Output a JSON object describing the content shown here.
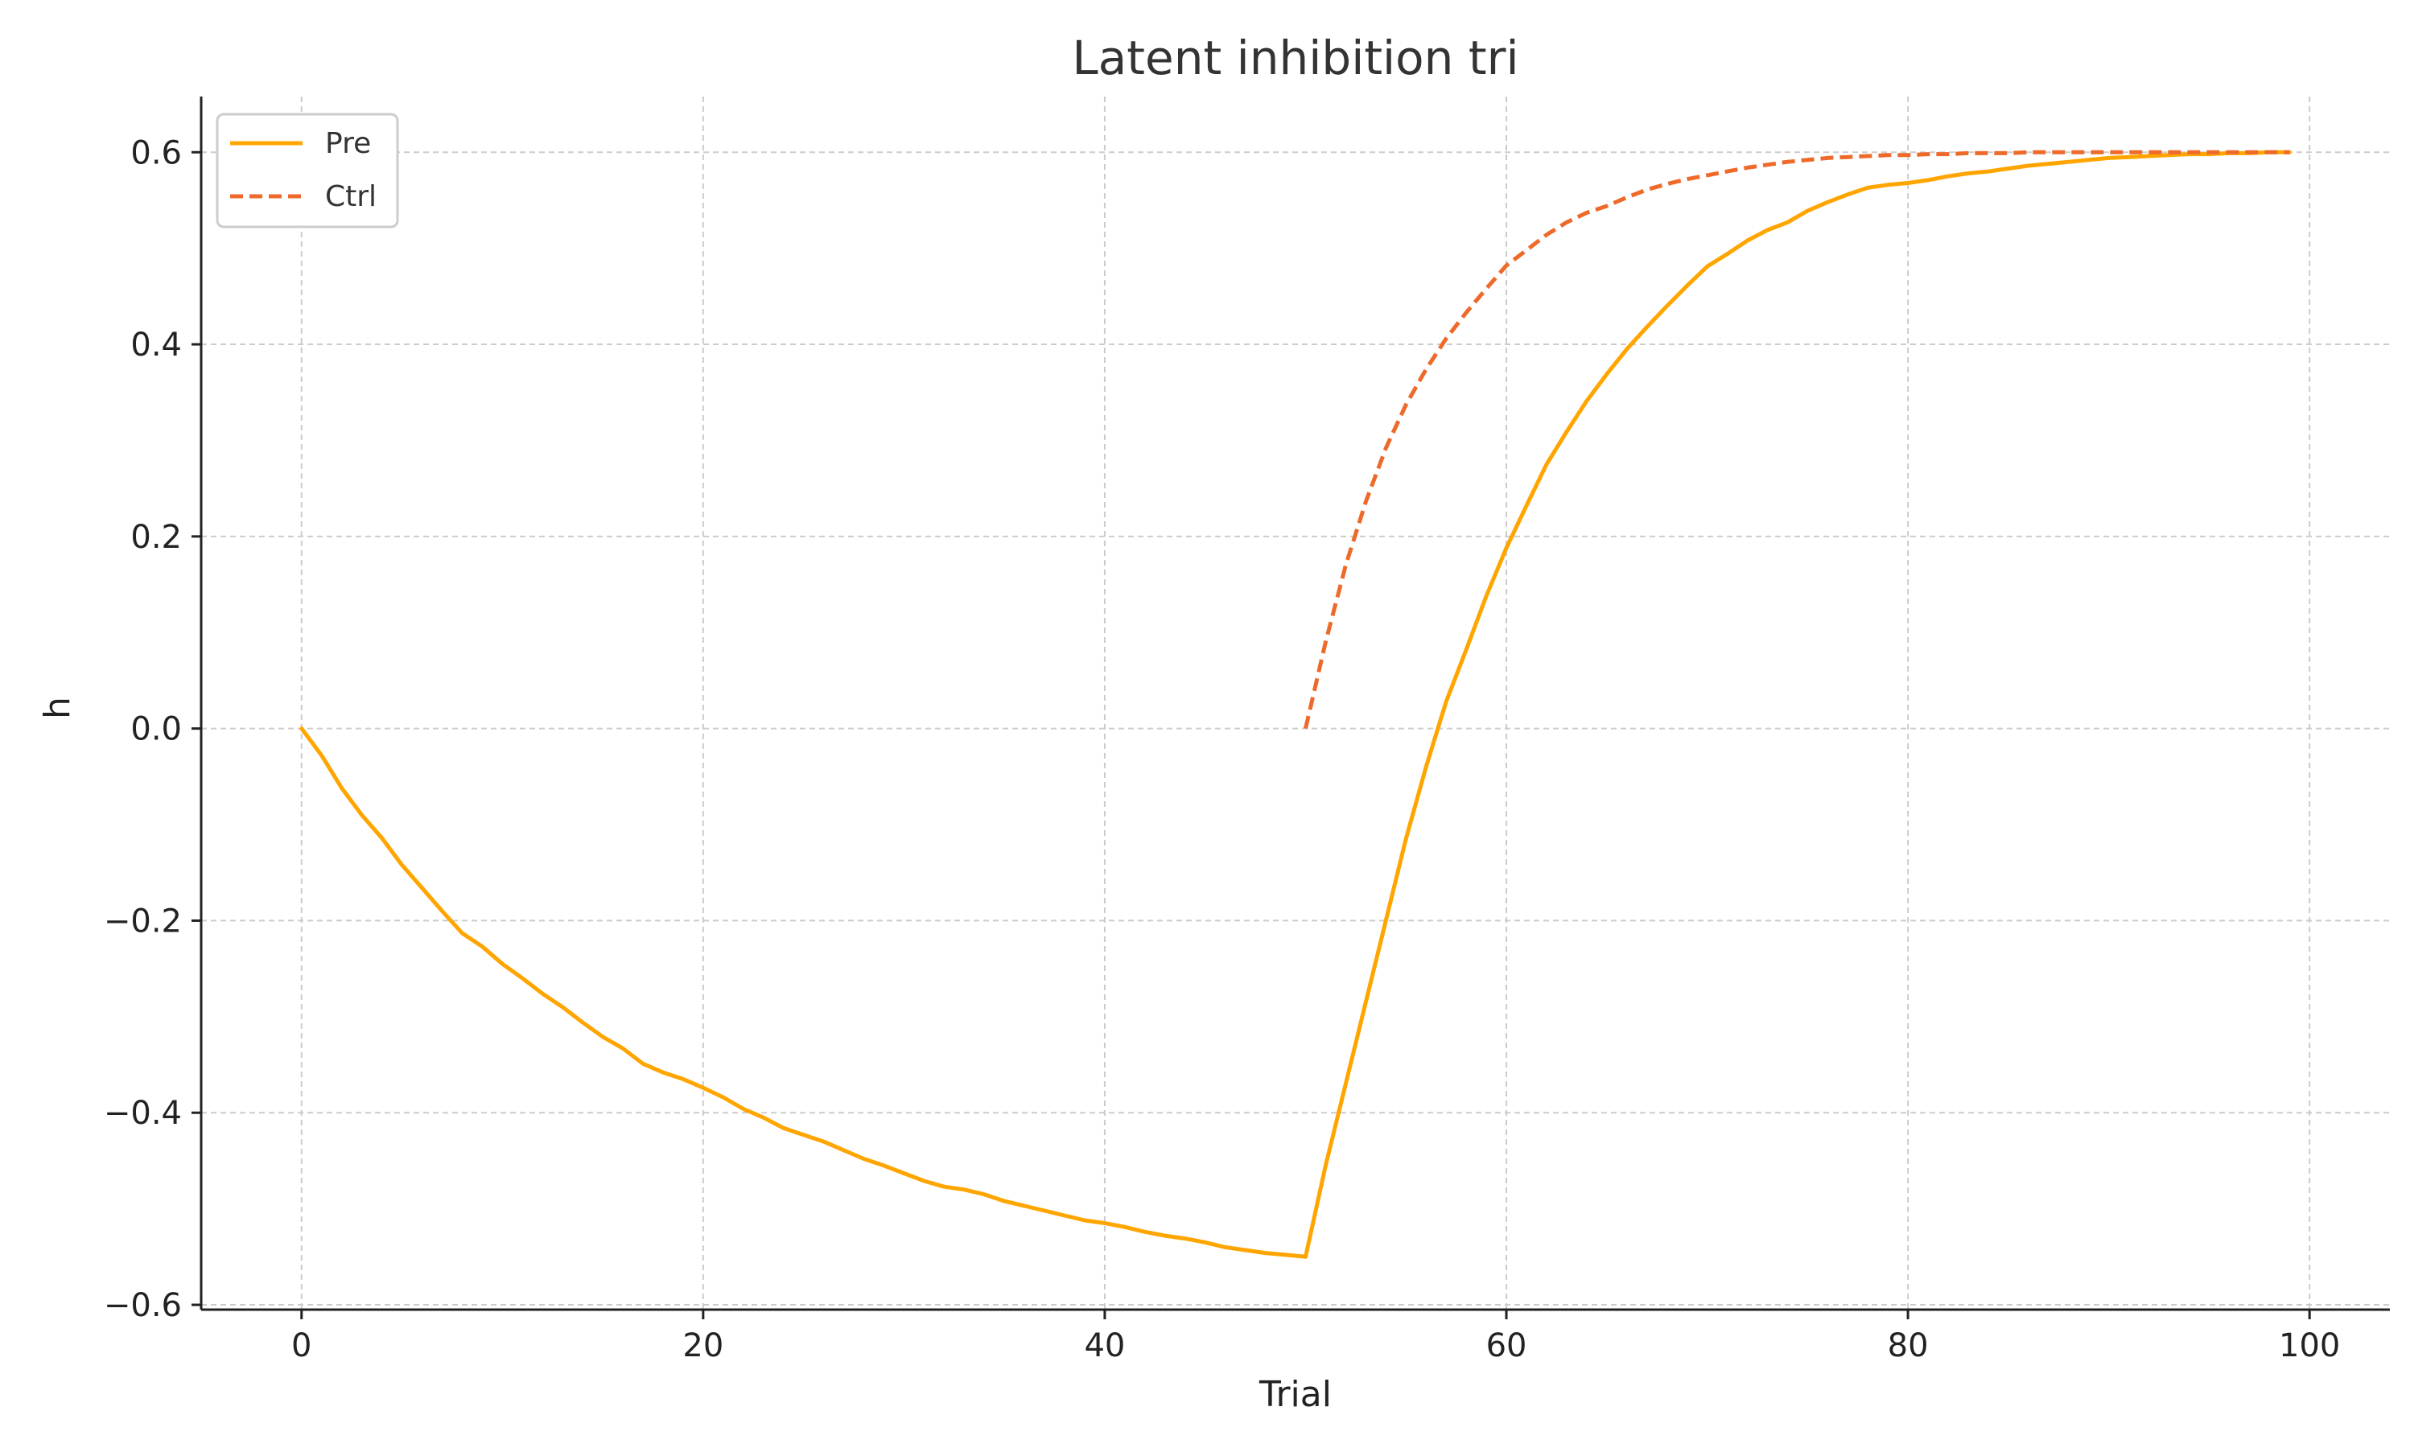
{
  "chart_data": {
    "type": "line",
    "title": "Latent inhibition tri",
    "xlabel": "Trial",
    "ylabel": "h",
    "xlim": [
      -5,
      104
    ],
    "ylim": [
      -0.605,
      0.658
    ],
    "xticks": [
      0,
      20,
      40,
      60,
      80,
      100
    ],
    "xtick_labels": [
      "0",
      "20",
      "40",
      "60",
      "80",
      "100"
    ],
    "yticks": [
      -0.6,
      -0.4,
      -0.2,
      0.0,
      0.2,
      0.4,
      0.6
    ],
    "ytick_labels": [
      "−0.6",
      "−0.4",
      "−0.2",
      "0.0",
      "0.2",
      "0.4",
      "0.6"
    ],
    "grid": true,
    "legend_position": "top-left",
    "series": [
      {
        "name": "Pre",
        "color": "#FFA500",
        "style": "solid",
        "x": [
          0,
          1,
          2,
          3,
          4,
          5,
          6,
          7,
          8,
          9,
          10,
          11,
          12,
          13,
          14,
          15,
          16,
          17,
          18,
          19,
          20,
          21,
          22,
          23,
          24,
          25,
          26,
          27,
          28,
          29,
          30,
          31,
          32,
          33,
          34,
          35,
          36,
          37,
          38,
          39,
          40,
          41,
          42,
          43,
          44,
          45,
          46,
          47,
          48,
          49,
          50,
          51,
          52,
          53,
          54,
          55,
          56,
          57,
          58,
          59,
          60,
          61,
          62,
          63,
          64,
          65,
          66,
          67,
          68,
          69,
          70,
          71,
          72,
          73,
          74,
          75,
          76,
          77,
          78,
          79,
          80,
          81,
          82,
          83,
          84,
          85,
          86,
          87,
          88,
          89,
          90,
          91,
          92,
          93,
          94,
          95,
          96,
          97,
          98,
          99
        ],
        "y": [
          0.0,
          -0.028,
          -0.062,
          -0.09,
          -0.114,
          -0.142,
          -0.166,
          -0.19,
          -0.213,
          -0.227,
          -0.245,
          -0.26,
          -0.276,
          -0.29,
          -0.306,
          -0.321,
          -0.333,
          -0.349,
          -0.358,
          -0.365,
          -0.374,
          -0.384,
          -0.396,
          -0.405,
          -0.416,
          -0.423,
          -0.43,
          -0.439,
          -0.448,
          -0.455,
          -0.463,
          -0.471,
          -0.477,
          -0.48,
          -0.485,
          -0.492,
          -0.497,
          -0.502,
          -0.507,
          -0.512,
          -0.515,
          -0.519,
          -0.524,
          -0.528,
          -0.531,
          -0.535,
          -0.54,
          -0.543,
          -0.546,
          -0.548,
          -0.55,
          -0.455,
          -0.37,
          -0.285,
          -0.2,
          -0.115,
          -0.04,
          0.028,
          0.082,
          0.138,
          0.188,
          0.232,
          0.275,
          0.309,
          0.341,
          0.369,
          0.395,
          0.418,
          0.44,
          0.461,
          0.481,
          0.494,
          0.508,
          0.519,
          0.527,
          0.539,
          0.548,
          0.556,
          0.563,
          0.566,
          0.568,
          0.571,
          0.575,
          0.578,
          0.58,
          0.583,
          0.586,
          0.588,
          0.59,
          0.592,
          0.594,
          0.595,
          0.596,
          0.597,
          0.598,
          0.598,
          0.599,
          0.599,
          0.6,
          0.6
        ]
      },
      {
        "name": "Ctrl",
        "color": "#EE6A2A",
        "style": "dashed",
        "x": [
          50,
          51,
          52,
          53,
          54,
          55,
          56,
          57,
          58,
          59,
          60,
          61,
          62,
          63,
          64,
          65,
          66,
          67,
          68,
          69,
          70,
          71,
          72,
          73,
          74,
          75,
          76,
          77,
          78,
          79,
          80,
          81,
          82,
          83,
          84,
          85,
          86,
          87,
          88,
          89,
          90,
          91,
          92,
          93,
          94,
          95,
          96,
          97,
          98,
          99
        ],
        "y": [
          0.0,
          0.09,
          0.17,
          0.236,
          0.292,
          0.337,
          0.374,
          0.406,
          0.433,
          0.458,
          0.482,
          0.498,
          0.514,
          0.527,
          0.537,
          0.544,
          0.553,
          0.561,
          0.567,
          0.572,
          0.576,
          0.58,
          0.584,
          0.587,
          0.59,
          0.592,
          0.594,
          0.595,
          0.596,
          0.597,
          0.597,
          0.598,
          0.598,
          0.599,
          0.599,
          0.599,
          0.6,
          0.6,
          0.6,
          0.6,
          0.6,
          0.6,
          0.6,
          0.6,
          0.6,
          0.6,
          0.6,
          0.6,
          0.6,
          0.6
        ]
      }
    ]
  }
}
